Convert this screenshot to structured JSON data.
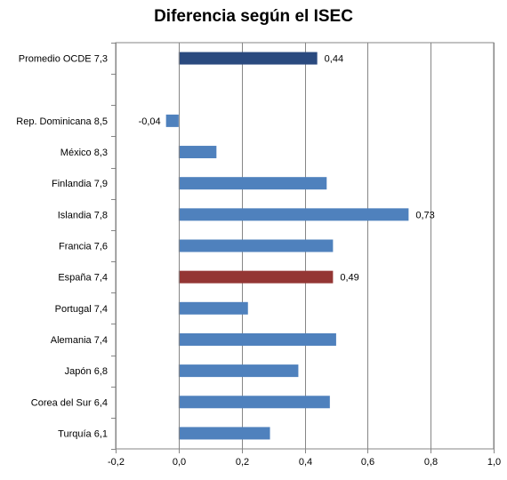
{
  "chart_data": {
    "type": "bar",
    "orientation": "horizontal",
    "title": "Diferencia según el ISEC",
    "xlabel": "",
    "ylabel": "",
    "xlim": [
      -0.2,
      1.0
    ],
    "x_ticks": [
      "-0,2",
      "0,0",
      "0,2",
      "0,4",
      "0,6",
      "0,8",
      "1,0"
    ],
    "x_tick_values": [
      -0.2,
      0.0,
      0.2,
      0.4,
      0.6,
      0.8,
      1.0
    ],
    "grid": true,
    "legend": "none",
    "categories": [
      "Promedio OCDE 7,3",
      "",
      "Rep. Dominicana 8,5",
      "México 8,3",
      "Finlandia 7,9",
      "Islandia 7,8",
      "Francia 7,6",
      "España 7,4",
      "Portugal 7,4",
      "Alemania 7,4",
      "Japón 6,8",
      "Corea del Sur 6,4",
      "Turquía 6,1"
    ],
    "values": [
      0.44,
      null,
      -0.04,
      0.12,
      0.47,
      0.73,
      0.49,
      0.49,
      0.22,
      0.5,
      0.38,
      0.48,
      0.29
    ],
    "data_labels": [
      "0,44",
      "",
      "-0,04",
      "",
      "",
      "0,73",
      "",
      "0,49",
      "",
      "",
      "",
      "",
      ""
    ],
    "colors": {
      "default": "#4f81bd",
      "oecd": "#2a4a7f",
      "spain": "#943634"
    },
    "bar_colors": [
      "oecd",
      "",
      "default",
      "default",
      "default",
      "default",
      "default",
      "spain",
      "default",
      "default",
      "default",
      "default",
      "default"
    ]
  }
}
